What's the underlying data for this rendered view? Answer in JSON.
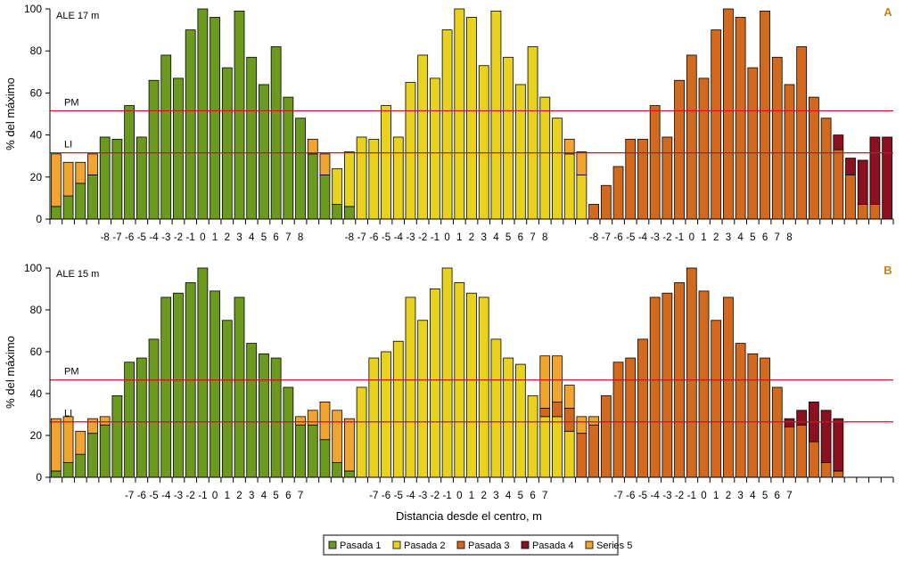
{
  "figure": {
    "xlabel": "Distancia desde el centro, m",
    "ylabel": "% del máximo",
    "legend_position": "bottom-center",
    "series_styles": [
      {
        "name": "Pasada 1",
        "color": "#6b9a1f"
      },
      {
        "name": "Pasada 2",
        "color": "#e8d21e"
      },
      {
        "name": "Pasada 3",
        "color": "#d2691e"
      },
      {
        "name": "Pasada 4",
        "color": "#8b1020"
      },
      {
        "name": "Series 5",
        "color": "#f2a431"
      }
    ],
    "reference_line_color": "#c8102e"
  },
  "chart_data": [
    {
      "type": "bar",
      "stacked": true,
      "panel_letter": "A",
      "annotation": "ALE 17 m",
      "ylabel": "% del máximo",
      "xlabel": "",
      "ylim": [
        0,
        100
      ],
      "yticks": [
        0,
        20,
        40,
        60,
        80,
        100
      ],
      "grid": false,
      "reference_lines": [
        {
          "label": "PM",
          "value": 51.5
        },
        {
          "label": "LI",
          "value": 31.5
        }
      ],
      "tick_groups": [
        {
          "start": 4,
          "labels": [
            "-8",
            "-7",
            "-6",
            "-5",
            "-4",
            "-3",
            "-2",
            "-1",
            "0",
            "1",
            "2",
            "3",
            "4",
            "5",
            "6",
            "7",
            "8"
          ]
        },
        {
          "start": 24,
          "labels": [
            "-8",
            "-7",
            "-6",
            "-5",
            "-4",
            "-3",
            "-2",
            "-1",
            "0",
            "1",
            "2",
            "3",
            "4",
            "5",
            "6",
            "7",
            "8"
          ]
        },
        {
          "start": 44,
          "labels": [
            "-8",
            "-7",
            "-6",
            "-5",
            "-4",
            "-3",
            "-2",
            "-1",
            "0",
            "1",
            "2",
            "3",
            "4",
            "5",
            "6",
            "7",
            "8"
          ]
        }
      ],
      "series": [
        {
          "name": "Pasada 1",
          "values": [
            6,
            11,
            17,
            21,
            39,
            38,
            54,
            39,
            66,
            78,
            67,
            90,
            100,
            96,
            72,
            99,
            77,
            64,
            82,
            58,
            48,
            31,
            21,
            7,
            6,
            0,
            0,
            0,
            0,
            0,
            0,
            0,
            0,
            0,
            0,
            0,
            0,
            0,
            0,
            0,
            0,
            0,
            0,
            0,
            0,
            0,
            0,
            0,
            0,
            0,
            0,
            0,
            0,
            0,
            0,
            0,
            0,
            0,
            0,
            0,
            0,
            0,
            0,
            0,
            0,
            0,
            0,
            0,
            0
          ]
        },
        {
          "name": "Pasada 2",
          "values": [
            0,
            0,
            0,
            0,
            0,
            0,
            0,
            0,
            0,
            0,
            0,
            0,
            0,
            0,
            0,
            0,
            0,
            0,
            0,
            0,
            0,
            0,
            0,
            17,
            26,
            39,
            38,
            54,
            39,
            65,
            78,
            67,
            90,
            100,
            96,
            73,
            99,
            77,
            64,
            82,
            58,
            48,
            31,
            21,
            0,
            0,
            0,
            0,
            0,
            0,
            0,
            0,
            0,
            0,
            0,
            0,
            0,
            0,
            0,
            0,
            0,
            0,
            0,
            0,
            0,
            0,
            0,
            0,
            0
          ]
        },
        {
          "name": "Pasada 3",
          "values": [
            0,
            0,
            0,
            0,
            0,
            0,
            0,
            0,
            0,
            0,
            0,
            0,
            0,
            0,
            0,
            0,
            0,
            0,
            0,
            0,
            0,
            0,
            0,
            0,
            0,
            0,
            0,
            0,
            0,
            0,
            0,
            0,
            0,
            0,
            0,
            0,
            0,
            0,
            0,
            0,
            0,
            0,
            0,
            0,
            7,
            16,
            25,
            38,
            38,
            54,
            39,
            66,
            78,
            67,
            90,
            100,
            96,
            72,
            99,
            77,
            64,
            82,
            58,
            48,
            33,
            21,
            7,
            7,
            0
          ]
        },
        {
          "name": "Pasada 4",
          "values": [
            0,
            0,
            0,
            0,
            0,
            0,
            0,
            0,
            0,
            0,
            0,
            0,
            0,
            0,
            0,
            0,
            0,
            0,
            0,
            0,
            0,
            0,
            0,
            0,
            0,
            0,
            0,
            0,
            0,
            0,
            0,
            0,
            0,
            0,
            0,
            0,
            0,
            0,
            0,
            0,
            0,
            0,
            0,
            0,
            0,
            0,
            0,
            0,
            0,
            0,
            0,
            0,
            0,
            0,
            0,
            0,
            0,
            0,
            0,
            0,
            0,
            0,
            0,
            0,
            7,
            8,
            21,
            32,
            39
          ]
        },
        {
          "name": "Series 5",
          "values": [
            25,
            16,
            10,
            10,
            0,
            0,
            0,
            0,
            0,
            0,
            0,
            0,
            0,
            0,
            0,
            0,
            0,
            0,
            0,
            0,
            0,
            7,
            10,
            0,
            0,
            0,
            0,
            0,
            0,
            0,
            0,
            0,
            0,
            0,
            0,
            0,
            0,
            0,
            0,
            0,
            0,
            0,
            7,
            11,
            0,
            0,
            0,
            0,
            0,
            0,
            0,
            0,
            0,
            0,
            0,
            0,
            0,
            0,
            0,
            0,
            0,
            0,
            0,
            0,
            0,
            0,
            0,
            0,
            0
          ]
        }
      ]
    },
    {
      "type": "bar",
      "stacked": true,
      "panel_letter": "B",
      "annotation": "ALE 15 m",
      "ylabel": "% del máximo",
      "xlabel": "Distancia desde el centro, m",
      "ylim": [
        0,
        100
      ],
      "yticks": [
        0,
        20,
        40,
        60,
        80,
        100
      ],
      "grid": false,
      "reference_lines": [
        {
          "label": "PM",
          "value": 46.5
        },
        {
          "label": "LI",
          "value": 26.5
        }
      ],
      "tick_groups": [
        {
          "start": 6,
          "labels": [
            "-7",
            "-6",
            "-5",
            "-4",
            "-3",
            "-2",
            "-1",
            "0",
            "1",
            "2",
            "3",
            "4",
            "5",
            "6",
            "7"
          ]
        },
        {
          "start": 26,
          "labels": [
            "-7",
            "-6",
            "-5",
            "-4",
            "-3",
            "-2",
            "-1",
            "0",
            "1",
            "2",
            "3",
            "4",
            "5",
            "6",
            "7"
          ]
        },
        {
          "start": 46,
          "labels": [
            "-7",
            "-6",
            "-5",
            "-4",
            "-3",
            "-2",
            "-1",
            "0",
            "1",
            "2",
            "3",
            "4",
            "5",
            "6",
            "7"
          ]
        }
      ],
      "series": [
        {
          "name": "Pasada 1",
          "values": [
            3,
            7,
            11,
            21,
            25,
            39,
            55,
            57,
            66,
            86,
            88,
            93,
            100,
            89,
            75,
            86,
            64,
            59,
            57,
            43,
            25,
            25,
            18,
            7,
            3,
            0,
            0,
            0,
            0,
            0,
            0,
            0,
            0,
            0,
            0,
            0,
            0,
            0,
            0,
            0,
            0,
            0,
            0,
            0,
            0,
            0,
            0,
            0,
            0,
            0,
            0,
            0,
            0,
            0,
            0,
            0,
            0,
            0,
            0,
            0,
            0,
            0,
            0,
            0,
            0,
            0,
            0,
            0,
            0
          ]
        },
        {
          "name": "Pasada 2",
          "values": [
            0,
            0,
            0,
            0,
            0,
            0,
            0,
            0,
            0,
            0,
            0,
            0,
            0,
            0,
            0,
            0,
            0,
            0,
            0,
            0,
            0,
            0,
            0,
            0,
            0,
            43,
            57,
            60,
            65,
            86,
            75,
            90,
            100,
            93,
            88,
            86,
            66,
            57,
            54,
            39,
            29,
            29,
            22,
            0,
            0,
            0,
            0,
            0,
            0,
            0,
            0,
            0,
            0,
            0,
            0,
            0,
            0,
            0,
            0,
            0,
            0,
            0,
            0,
            0,
            0,
            0,
            0,
            0,
            0
          ]
        },
        {
          "name": "Pasada 3",
          "values": [
            0,
            0,
            0,
            0,
            0,
            0,
            0,
            0,
            0,
            0,
            0,
            0,
            0,
            0,
            0,
            0,
            0,
            0,
            0,
            0,
            0,
            0,
            0,
            0,
            0,
            0,
            0,
            0,
            0,
            0,
            0,
            0,
            0,
            0,
            0,
            0,
            0,
            0,
            0,
            0,
            4,
            7,
            11,
            21,
            25,
            39,
            55,
            57,
            66,
            86,
            88,
            93,
            100,
            89,
            75,
            86,
            64,
            59,
            57,
            43,
            24,
            25,
            17,
            7,
            3,
            0,
            0,
            0,
            0
          ]
        },
        {
          "name": "Pasada 4",
          "values": [
            0,
            0,
            0,
            0,
            0,
            0,
            0,
            0,
            0,
            0,
            0,
            0,
            0,
            0,
            0,
            0,
            0,
            0,
            0,
            0,
            0,
            0,
            0,
            0,
            0,
            0,
            0,
            0,
            0,
            0,
            0,
            0,
            0,
            0,
            0,
            0,
            0,
            0,
            0,
            0,
            0,
            0,
            0,
            0,
            0,
            0,
            0,
            0,
            0,
            0,
            0,
            0,
            0,
            0,
            0,
            0,
            0,
            0,
            0,
            0,
            4,
            7,
            19,
            25,
            25,
            0,
            0,
            0,
            0
          ]
        },
        {
          "name": "Series 5",
          "values": [
            25,
            22,
            11,
            7,
            4,
            0,
            0,
            0,
            0,
            0,
            0,
            0,
            0,
            0,
            0,
            0,
            0,
            0,
            0,
            0,
            4,
            7,
            18,
            25,
            25,
            0,
            0,
            0,
            0,
            0,
            0,
            0,
            0,
            0,
            0,
            0,
            0,
            0,
            0,
            0,
            25,
            22,
            11,
            8,
            4,
            0,
            0,
            0,
            0,
            0,
            0,
            0,
            0,
            0,
            0,
            0,
            0,
            0,
            0,
            0,
            0,
            0,
            0,
            0,
            0,
            0,
            0,
            0,
            0
          ]
        }
      ]
    }
  ]
}
